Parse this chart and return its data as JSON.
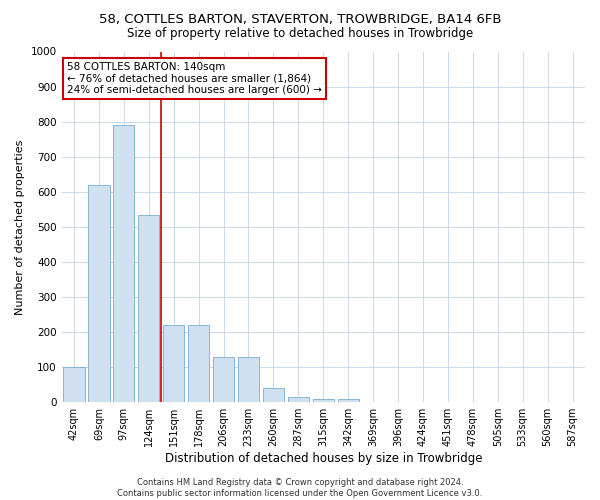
{
  "title": "58, COTTLES BARTON, STAVERTON, TROWBRIDGE, BA14 6FB",
  "subtitle": "Size of property relative to detached houses in Trowbridge",
  "xlabel": "Distribution of detached houses by size in Trowbridge",
  "ylabel": "Number of detached properties",
  "categories": [
    "42sqm",
    "69sqm",
    "97sqm",
    "124sqm",
    "151sqm",
    "178sqm",
    "206sqm",
    "233sqm",
    "260sqm",
    "287sqm",
    "315sqm",
    "342sqm",
    "369sqm",
    "396sqm",
    "424sqm",
    "451sqm",
    "478sqm",
    "505sqm",
    "533sqm",
    "560sqm",
    "587sqm"
  ],
  "values": [
    100,
    620,
    790,
    535,
    220,
    220,
    130,
    130,
    40,
    15,
    10,
    10,
    0,
    0,
    0,
    0,
    0,
    0,
    0,
    0,
    0
  ],
  "bar_color": "#cfe0f0",
  "bar_edge_color": "#7aadd4",
  "vline_x": 3.5,
  "vline_color": "#cc0000",
  "annotation_text": "58 COTTLES BARTON: 140sqm\n← 76% of detached houses are smaller (1,864)\n24% of semi-detached houses are larger (600) →",
  "annotation_box_color": "#ffffff",
  "annotation_box_edge": "#cc0000",
  "ylim": [
    0,
    1000
  ],
  "yticks": [
    0,
    100,
    200,
    300,
    400,
    500,
    600,
    700,
    800,
    900,
    1000
  ],
  "footer": "Contains HM Land Registry data © Crown copyright and database right 2024.\nContains public sector information licensed under the Open Government Licence v3.0.",
  "bg_color": "#ffffff",
  "grid_color": "#c8daea",
  "title_fontsize": 9.5,
  "subtitle_fontsize": 8.5,
  "xlabel_fontsize": 8.5,
  "ylabel_fontsize": 8,
  "tick_fontsize": 7,
  "ytick_fontsize": 7.5,
  "footer_fontsize": 6,
  "annotation_fontsize": 7.5
}
